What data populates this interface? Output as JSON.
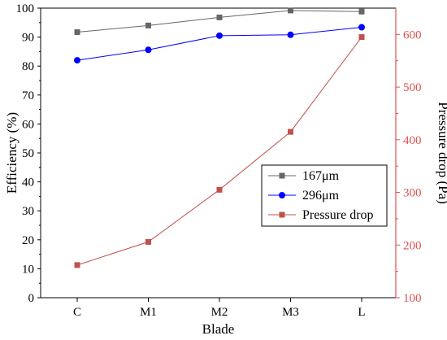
{
  "chart_data": {
    "type": "line",
    "categories": [
      "C",
      "M1",
      "M2",
      "M3",
      "L"
    ],
    "xlabel": "Blade",
    "ylabel_left": "Efficiency (%)",
    "ylabel_right": "Pressure drop (Pa)",
    "ylim_left": [
      0,
      100
    ],
    "ylim_right": [
      100,
      650
    ],
    "yticks_left": [
      0,
      10,
      20,
      30,
      40,
      50,
      60,
      70,
      80,
      90,
      100
    ],
    "yticks_right": [
      100,
      200,
      300,
      400,
      500,
      600
    ],
    "grid": false,
    "legend_placement": "center-right",
    "series": [
      {
        "name": "167μm",
        "axis": "left",
        "marker": "square",
        "color": "#666666",
        "values": [
          91.7,
          94.0,
          96.8,
          99.2,
          98.8
        ]
      },
      {
        "name": "296μm",
        "axis": "left",
        "marker": "circle",
        "color": "#0000ff",
        "values": [
          82.0,
          85.6,
          90.5,
          90.8,
          93.4
        ]
      },
      {
        "name": "Pressure drop",
        "axis": "right",
        "marker": "square",
        "color": "#c0504d",
        "values": [
          162,
          206,
          305,
          415,
          595
        ]
      }
    ],
    "axis_colors": {
      "left": "#000000",
      "right": "#e05050"
    }
  }
}
